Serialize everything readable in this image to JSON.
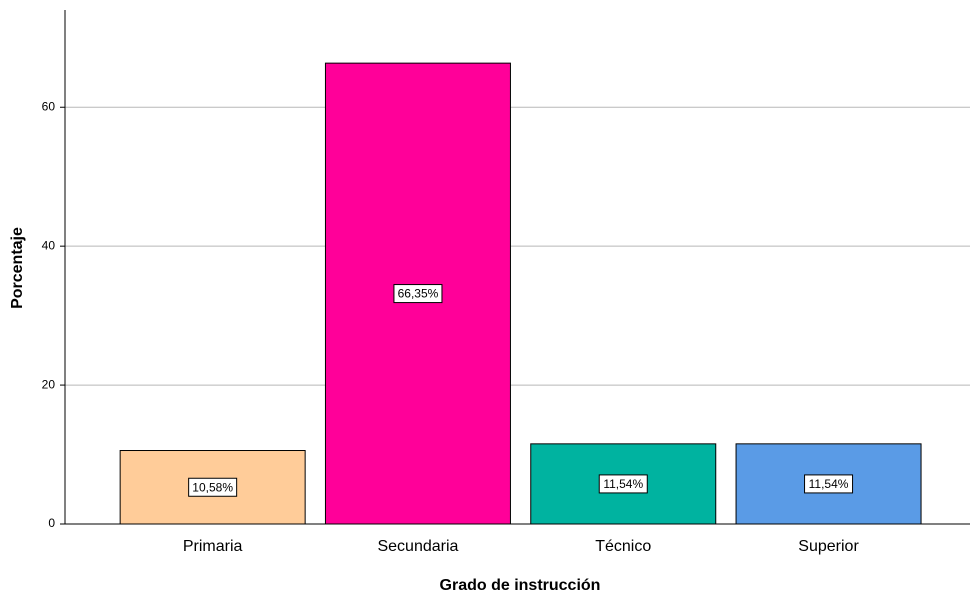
{
  "chart_data": {
    "type": "bar",
    "xlabel": "Grado de instrucción",
    "ylabel": "Porcentaje",
    "categories": [
      "Primaria",
      "Secundaria",
      "Técnico",
      "Superior"
    ],
    "values": [
      10.58,
      66.35,
      11.54,
      11.54
    ],
    "value_labels": [
      "10,58%",
      "66,35%",
      "11,54%",
      "11,54%"
    ],
    "colors": [
      "#ffcc99",
      "#ff0099",
      "#00b3a0",
      "#5a9be6"
    ],
    "ylim": [
      0,
      74
    ],
    "yticks": [
      0,
      20,
      40,
      60
    ],
    "grid": true
  }
}
